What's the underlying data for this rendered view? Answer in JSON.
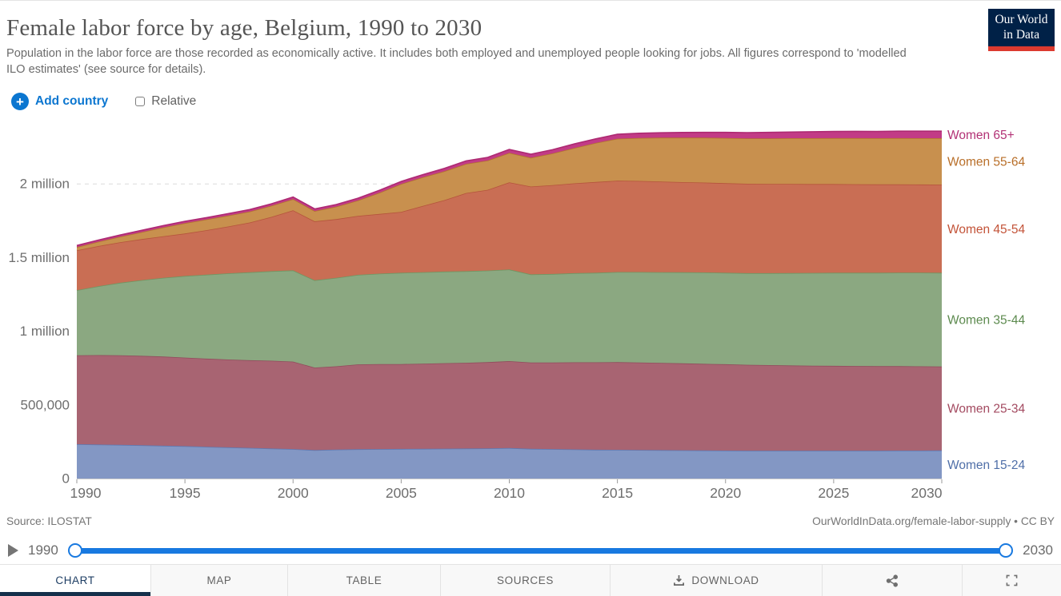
{
  "header": {
    "title": "Female labor force by age, Belgium, 1990 to 2030",
    "subtitle": "Population in the labor force are those recorded as economically active. It includes both employed and unemployed people looking for jobs. All figures correspond to 'modelled ILO estimates' (see source for details)."
  },
  "logo": {
    "line1": "Our World",
    "line2": "in Data",
    "bg_color": "#002147",
    "accent_color": "#dc3a2f"
  },
  "controls": {
    "add_country_label": "Add country",
    "relative_label": "Relative",
    "relative_checked": false,
    "accent_color": "#0b76d0"
  },
  "chart_data": {
    "type": "area",
    "stacked": true,
    "title": "Female labor force by age, Belgium, 1990 to 2030",
    "xlabel": "",
    "ylabel": "",
    "x": [
      1990,
      1991,
      1992,
      1993,
      1994,
      1995,
      1996,
      1997,
      1998,
      1999,
      2000,
      2001,
      2002,
      2003,
      2004,
      2005,
      2006,
      2007,
      2008,
      2009,
      2010,
      2011,
      2012,
      2013,
      2014,
      2015,
      2016,
      2017,
      2018,
      2019,
      2020,
      2021,
      2022,
      2023,
      2024,
      2025,
      2026,
      2027,
      2028,
      2029,
      2030
    ],
    "xticks": [
      1990,
      1995,
      2000,
      2005,
      2010,
      2015,
      2020,
      2025,
      2030
    ],
    "yticks": [
      {
        "value": 0,
        "label": "0"
      },
      {
        "value": 500000,
        "label": "500,000"
      },
      {
        "value": 1000000,
        "label": "1 million"
      },
      {
        "value": 1500000,
        "label": "1.5 million"
      },
      {
        "value": 2000000,
        "label": "2 million"
      }
    ],
    "ylim": [
      0,
      2400000
    ],
    "xlim": [
      1990,
      2030
    ],
    "grid": "dashed-horizontal",
    "legend_position": "right-of-plot",
    "series": [
      {
        "name": "Women 15-24",
        "fill": "#8397c4",
        "stroke": "#5e79b2",
        "label_color": "#4f6fa8",
        "values": [
          233000,
          231000,
          229000,
          226000,
          223000,
          220000,
          216000,
          212000,
          208000,
          204000,
          200000,
          193000,
          197000,
          199000,
          200000,
          201000,
          202000,
          203000,
          204000,
          205000,
          207000,
          202000,
          200000,
          198000,
          196000,
          195000,
          194000,
          193000,
          192000,
          191000,
          190000,
          189000,
          189000,
          189000,
          189000,
          189000,
          189000,
          189000,
          190000,
          190000,
          191000
        ]
      },
      {
        "name": "Women 25-34",
        "fill": "#a86472",
        "stroke": "#914c5c",
        "label_color": "#a34a60",
        "values": [
          604000,
          607000,
          608000,
          607000,
          605000,
          601000,
          598000,
          596000,
          595000,
          596000,
          594000,
          560000,
          565000,
          576000,
          577000,
          576000,
          578000,
          580000,
          582000,
          585000,
          590000,
          586000,
          588000,
          591000,
          593000,
          595000,
          594000,
          592000,
          590000,
          588000,
          586000,
          583000,
          581000,
          579000,
          577000,
          576000,
          575000,
          574000,
          573000,
          572000,
          570000
        ]
      },
      {
        "name": "Women 35-44",
        "fill": "#8ba881",
        "stroke": "#6f9662",
        "label_color": "#5c8a4e",
        "values": [
          442000,
          468000,
          492000,
          514000,
          535000,
          554000,
          570000,
          585000,
          597000,
          608000,
          619000,
          593000,
          601000,
          608000,
          614000,
          620000,
          621000,
          622000,
          622000,
          622000,
          622000,
          598000,
          601000,
          605000,
          608000,
          612000,
          614000,
          616000,
          618000,
          620000,
          621000,
          622000,
          624000,
          627000,
          630000,
          632000,
          633000,
          634000,
          635000,
          636000,
          636000
        ]
      },
      {
        "name": "Women 45-54",
        "fill": "#c96e54",
        "stroke": "#b5543c",
        "label_color": "#c35338",
        "values": [
          270000,
          272000,
          275000,
          278000,
          282000,
          288000,
          302000,
          318000,
          338000,
          368000,
          408000,
          400000,
          398000,
          400000,
          405000,
          413000,
          450000,
          485000,
          530000,
          548000,
          592000,
          596000,
          603000,
          610000,
          616000,
          620000,
          618000,
          615000,
          612000,
          610000,
          608000,
          607000,
          606000,
          605000,
          603000,
          602000,
          601000,
          600000,
          599000,
          598000,
          598000
        ]
      },
      {
        "name": "Women 55-64",
        "fill": "#c8904e",
        "stroke": "#b3742f",
        "label_color": "#b86e28",
        "values": [
          22000,
          30000,
          38000,
          48000,
          60000,
          71000,
          73000,
          74000,
          75000,
          76000,
          76000,
          70000,
          85000,
          105000,
          145000,
          190000,
          194000,
          196000,
          198000,
          199000,
          200000,
          196000,
          215000,
          240000,
          265000,
          285000,
          292000,
          298000,
          302000,
          305000,
          307000,
          308000,
          309000,
          310000,
          311000,
          312000,
          313000,
          313000,
          314000,
          314000,
          315000
        ]
      },
      {
        "name": "Women 65+",
        "fill": "#c23b86",
        "stroke": "#ad2a72",
        "label_color": "#b23175",
        "values": [
          11000,
          11000,
          11000,
          12000,
          12000,
          12000,
          12000,
          13000,
          13000,
          13000,
          14000,
          14000,
          14000,
          15000,
          16000,
          17000,
          18000,
          19000,
          20000,
          21000,
          23000,
          24000,
          25000,
          27000,
          28000,
          30000,
          32000,
          33000,
          35000,
          36000,
          38000,
          39000,
          41000,
          42000,
          44000,
          45000,
          46000,
          46000,
          47000,
          48000,
          48000
        ]
      }
    ]
  },
  "footer": {
    "source": "Source: ILOSTAT",
    "attribution": "OurWorldInData.org/female-labor-supply • CC BY"
  },
  "timeline": {
    "start_label": "1990",
    "end_label": "2030"
  },
  "tabs": [
    {
      "label": "CHART",
      "active": true
    },
    {
      "label": "MAP"
    },
    {
      "label": "TABLE"
    },
    {
      "label": "SOURCES"
    },
    {
      "label": "DOWNLOAD",
      "icon": "download"
    },
    {
      "label": "",
      "icon": "share"
    },
    {
      "label": "",
      "icon": "fullscreen"
    }
  ]
}
